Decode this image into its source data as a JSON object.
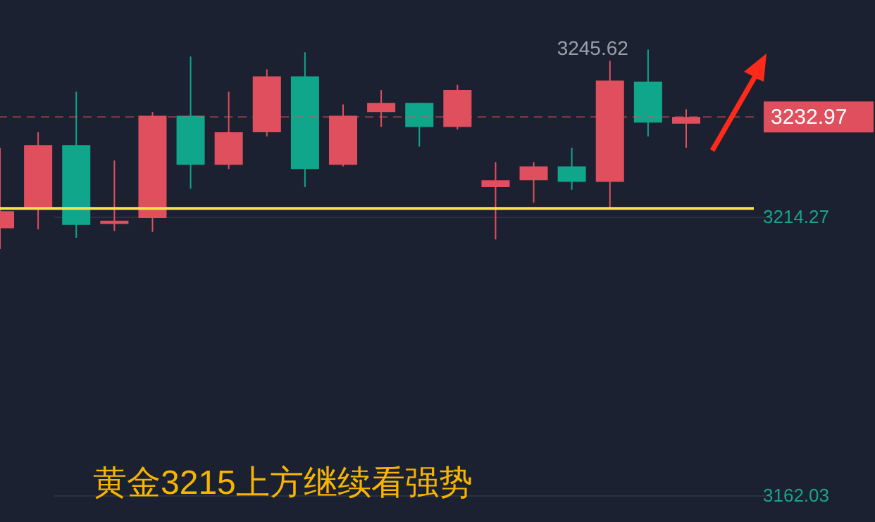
{
  "chart_data": {
    "type": "candlestick",
    "categories": [
      null,
      null,
      null,
      null,
      null,
      null,
      null,
      null,
      null,
      null,
      null,
      null,
      null,
      null,
      null,
      null,
      null,
      null,
      null
    ],
    "ohlc": [
      [
        3212.1,
        3227.2,
        3208.2,
        3215.3
      ],
      [
        3215.6,
        3230.1,
        3211.9,
        3227.7
      ],
      [
        3227.7,
        3237.7,
        3210.3,
        3212.7
      ],
      [
        3212.9,
        3224.8,
        3211.6,
        3213.5
      ],
      [
        3214.0,
        3233.9,
        3211.4,
        3233.2
      ],
      [
        3233.2,
        3244.3,
        3219.5,
        3224.0
      ],
      [
        3224.0,
        3237.7,
        3223.2,
        3230.1
      ],
      [
        3230.1,
        3241.9,
        3229.3,
        3240.6
      ],
      [
        3240.6,
        3245.1,
        3219.8,
        3223.2
      ],
      [
        3224.0,
        3235.3,
        3223.7,
        3233.2
      ],
      [
        3233.9,
        3238.0,
        3231.1,
        3235.6
      ],
      [
        3235.6,
        3235.6,
        3227.4,
        3231.1
      ],
      [
        3231.1,
        3239.0,
        3230.6,
        3238.0
      ],
      [
        3219.8,
        3224.5,
        3210.0,
        3221.1
      ],
      [
        3221.1,
        3224.5,
        3216.9,
        3223.7
      ],
      [
        3223.7,
        3227.2,
        3219.3,
        3220.8
      ],
      [
        3220.8,
        3243.5,
        3215.8,
        3239.8
      ],
      [
        3239.6,
        3245.62,
        3229.3,
        3231.9
      ],
      [
        3231.7,
        3234.4,
        3227.2,
        3232.97
      ]
    ],
    "colors": [
      "#e04f5d",
      "#e04f5d",
      "#0fa68c",
      "#e04f5d",
      "#e04f5d",
      "#0fa68c",
      "#e04f5d",
      "#e04f5d",
      "#0fa68c",
      "#e04f5d",
      "#e04f5d",
      "#0fa68c",
      "#e04f5d",
      "#e04f5d",
      "#e04f5d",
      "#0fa68c",
      "#e04f5d",
      "#0fa68c",
      "#e04f5d"
    ],
    "ylim": [
      3157.0,
      3254.9
    ],
    "yticks": [
      3214.27,
      3162.03
    ],
    "grid": "y",
    "ref_lines": [
      {
        "axis": "y",
        "value": 3232.97,
        "label": "3232.97",
        "color": "#e04f5d",
        "line_style": "dashed"
      },
      {
        "axis": "y",
        "value": 3215.8,
        "color": "#f7e43c",
        "line_style": "solid"
      }
    ],
    "annotations": [
      "黄金3215上方继续看强势",
      "3245.62"
    ]
  }
}
